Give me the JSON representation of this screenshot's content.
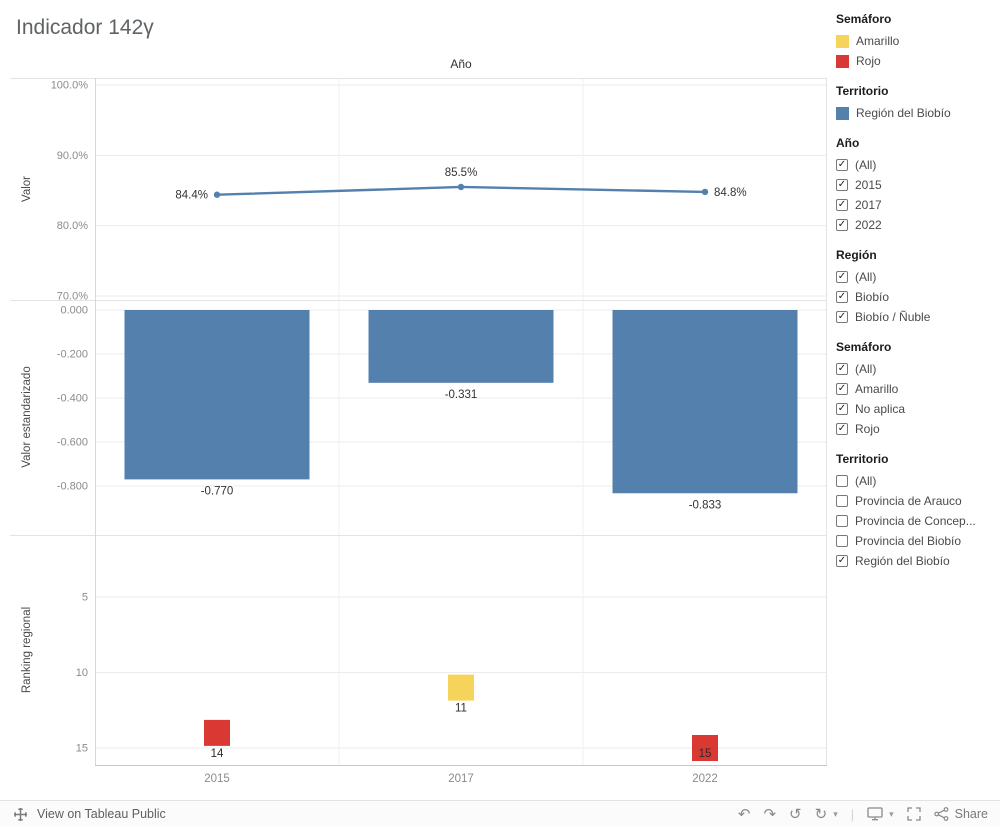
{
  "title": "Indicador 142γ",
  "colors": {
    "blue": "#5480AD",
    "yellow": "#F6D35B",
    "red": "#DA3832"
  },
  "icons": {
    "undo": "↶",
    "redo": "↷",
    "replay": "↺",
    "refresh": "↻",
    "caret": "▾",
    "separator": "|",
    "check": "✓"
  },
  "chart_data": [
    {
      "type": "line",
      "title": "Año",
      "ylabel": "Valor",
      "x": [
        "2015",
        "2017",
        "2022"
      ],
      "values": [
        84.4,
        85.5,
        84.8
      ],
      "point_labels": [
        "84.4%",
        "85.5%",
        "84.8%"
      ],
      "ylim": [
        70,
        100
      ],
      "yticks": [
        {
          "v": 100,
          "label": "100.0%"
        },
        {
          "v": 90,
          "label": "90.0%"
        },
        {
          "v": 80,
          "label": "80.0%"
        },
        {
          "v": 70,
          "label": "70.0%"
        }
      ],
      "series_color": "#5480AD",
      "grid": true,
      "legend_position": "right"
    },
    {
      "type": "bar",
      "ylabel": "Valor estandarizado",
      "x": [
        "2015",
        "2017",
        "2022"
      ],
      "values": [
        -0.77,
        -0.331,
        -0.833
      ],
      "point_labels": [
        "-0.770",
        "-0.331",
        "-0.833"
      ],
      "ylim": [
        -0.9,
        0
      ],
      "yticks": [
        {
          "v": 0,
          "label": "0.000"
        },
        {
          "v": -0.2,
          "label": "-0.200"
        },
        {
          "v": -0.4,
          "label": "-0.400"
        },
        {
          "v": -0.6,
          "label": "-0.600"
        },
        {
          "v": -0.8,
          "label": "-0.800"
        }
      ],
      "series_color": "#5480AD",
      "grid": true
    },
    {
      "type": "scatter",
      "ylabel": "Ranking regional",
      "x": [
        "2015",
        "2017",
        "2022"
      ],
      "values": [
        14,
        11,
        15
      ],
      "point_labels": [
        "14",
        "11",
        "15"
      ],
      "point_colors": [
        "#DA3832",
        "#F6D35B",
        "#DA3832"
      ],
      "ylim": [
        5,
        15
      ],
      "y_inverted": true,
      "yticks": [
        {
          "v": 5,
          "label": "5"
        },
        {
          "v": 10,
          "label": "10"
        },
        {
          "v": 15,
          "label": "15"
        }
      ],
      "grid": true
    }
  ],
  "sidebar": {
    "sections": [
      {
        "type": "legend",
        "title": "Semáforo",
        "items": [
          {
            "label": "Amarillo",
            "color": "#F6D35B"
          },
          {
            "label": "Rojo",
            "color": "#DA3832"
          }
        ]
      },
      {
        "type": "legend",
        "title": "Territorio",
        "items": [
          {
            "label": "Región del Biobío",
            "color": "#5480AD"
          }
        ]
      },
      {
        "type": "filter",
        "title": "Año",
        "items": [
          {
            "label": "(All)",
            "checked": true
          },
          {
            "label": "2015",
            "checked": true
          },
          {
            "label": "2017",
            "checked": true
          },
          {
            "label": "2022",
            "checked": true
          }
        ]
      },
      {
        "type": "filter",
        "title": "Región",
        "items": [
          {
            "label": "(All)",
            "checked": true
          },
          {
            "label": "Biobío",
            "checked": true
          },
          {
            "label": "Biobío / Ñuble",
            "checked": true
          }
        ]
      },
      {
        "type": "filter",
        "title": "Semáforo",
        "items": [
          {
            "label": "(All)",
            "checked": true
          },
          {
            "label": "Amarillo",
            "checked": true
          },
          {
            "label": "No aplica",
            "checked": true
          },
          {
            "label": "Rojo",
            "checked": true
          }
        ]
      },
      {
        "type": "filter",
        "title": "Territorio",
        "items": [
          {
            "label": "(All)",
            "checked": false
          },
          {
            "label": "Provincia de Arauco",
            "checked": false
          },
          {
            "label": "Provincia de Concep...",
            "checked": false
          },
          {
            "label": "Provincia del Biobío",
            "checked": false
          },
          {
            "label": "Región del Biobío",
            "checked": true
          }
        ]
      }
    ]
  },
  "toolbar": {
    "view_on_label": "View on Tableau Public",
    "share_label": "Share"
  }
}
